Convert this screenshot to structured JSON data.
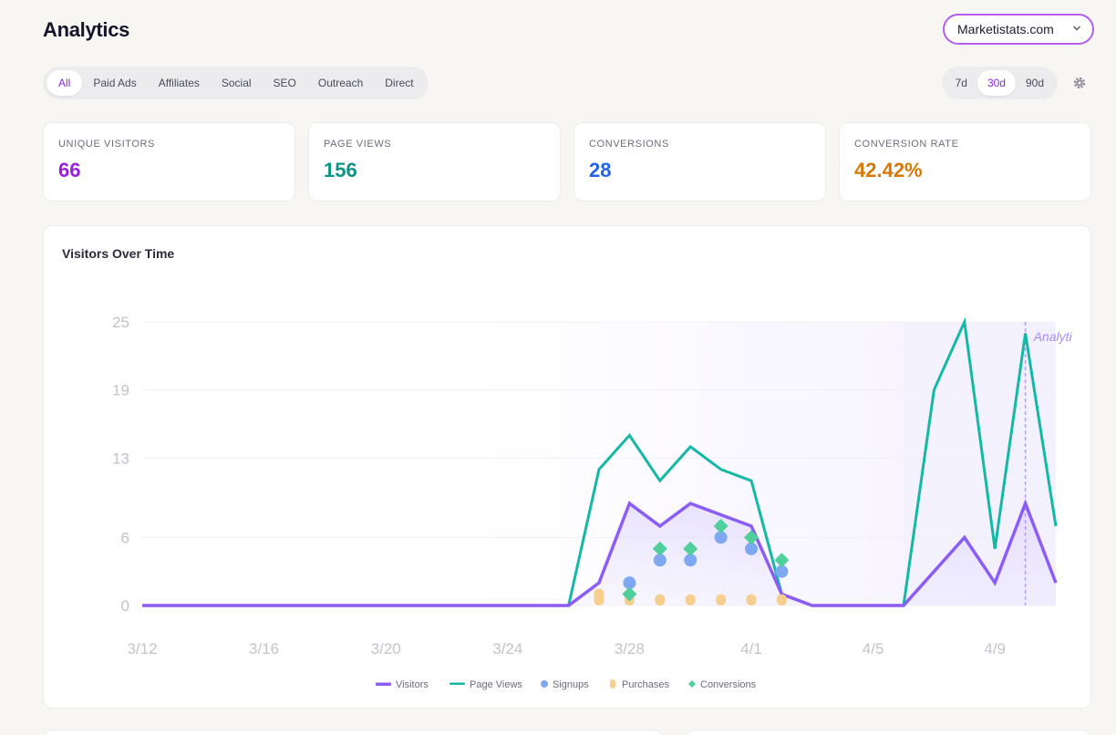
{
  "header": {
    "title": "Analytics",
    "site": "Marketistats.com"
  },
  "channels": [
    "All",
    "Paid Ads",
    "Affiliates",
    "Social",
    "SEO",
    "Outreach",
    "Direct"
  ],
  "active_channel": "All",
  "ranges": [
    "7d",
    "30d",
    "90d"
  ],
  "active_range": "30d",
  "stats": [
    {
      "label": "UNIQUE VISITORS",
      "value": "66",
      "color": "#9b1fe0"
    },
    {
      "label": "PAGE VIEWS",
      "value": "156",
      "color": "#0d9488"
    },
    {
      "label": "CONVERSIONS",
      "value": "28",
      "color": "#2563eb"
    },
    {
      "label": "CONVERSION RATE",
      "value": "42.42%",
      "color": "#d97706"
    }
  ],
  "chart": {
    "title": "Visitors Over Time",
    "annotation": "Analyti"
  },
  "chart_data": {
    "type": "line",
    "x": [
      "3/12",
      "3/13",
      "3/14",
      "3/15",
      "3/16",
      "3/17",
      "3/18",
      "3/19",
      "3/20",
      "3/21",
      "3/22",
      "3/23",
      "3/24",
      "3/25",
      "3/26",
      "3/27",
      "3/28",
      "3/29",
      "3/30",
      "3/31",
      "4/1",
      "4/2",
      "4/3",
      "4/4",
      "4/5",
      "4/6",
      "4/7",
      "4/8",
      "4/9",
      "4/10",
      "4/11"
    ],
    "x_ticks": [
      "3/12",
      "3/16",
      "3/20",
      "3/24",
      "3/28",
      "4/1",
      "4/5",
      "4/9"
    ],
    "y_ticks": [
      0,
      6,
      13,
      19,
      25
    ],
    "ylim": [
      0,
      25
    ],
    "series": [
      {
        "name": "Visitors",
        "kind": "line",
        "color": "#8b5cf6",
        "values": [
          0,
          0,
          0,
          0,
          0,
          0,
          0,
          0,
          0,
          0,
          0,
          0,
          0,
          0,
          0,
          2,
          9,
          7,
          9,
          8,
          7,
          1,
          0,
          0,
          0,
          0,
          3,
          6,
          2,
          9,
          2
        ]
      },
      {
        "name": "Page Views",
        "kind": "line",
        "color": "#14b8a6",
        "values": [
          0,
          0,
          0,
          0,
          0,
          0,
          0,
          0,
          0,
          0,
          0,
          0,
          0,
          0,
          0,
          12,
          15,
          11,
          14,
          12,
          11,
          1,
          0,
          0,
          0,
          0,
          19,
          25,
          5,
          24,
          7
        ]
      },
      {
        "name": "Signups",
        "kind": "dot",
        "color": "#7ea8f2",
        "values": [
          null,
          null,
          null,
          null,
          null,
          null,
          null,
          null,
          null,
          null,
          null,
          null,
          null,
          null,
          null,
          null,
          2,
          4,
          4,
          6,
          5,
          3,
          null,
          null,
          null,
          null,
          null,
          null,
          null,
          null,
          null
        ]
      },
      {
        "name": "Purchases",
        "kind": "pill",
        "color": "#f6cf8f",
        "values": [
          null,
          null,
          null,
          null,
          null,
          null,
          null,
          null,
          null,
          null,
          null,
          null,
          null,
          null,
          null,
          1,
          0.5,
          0.5,
          0.5,
          0.5,
          0.5,
          0.5,
          null,
          null,
          null,
          null,
          null,
          null,
          null,
          null,
          null
        ]
      },
      {
        "name": "Conversions",
        "kind": "diamond",
        "color": "#4fcf9a",
        "values": [
          null,
          null,
          null,
          null,
          null,
          null,
          null,
          null,
          null,
          null,
          null,
          null,
          null,
          null,
          null,
          null,
          1,
          5,
          5,
          7,
          6,
          4,
          null,
          null,
          null,
          null,
          null,
          null,
          null,
          null,
          null
        ]
      }
    ],
    "marker": "4/10",
    "legend": "bottom-center",
    "grid": true
  }
}
